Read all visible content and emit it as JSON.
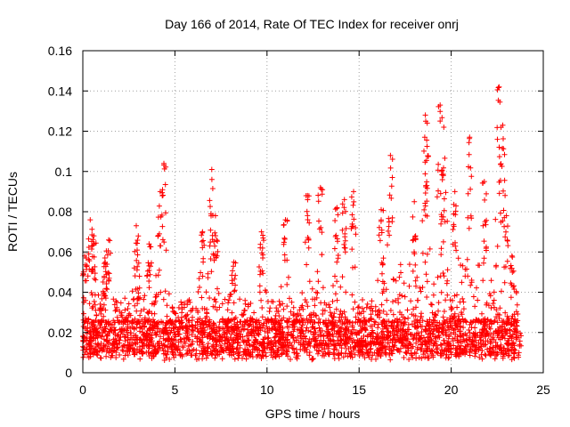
{
  "chart_data": {
    "type": "scatter",
    "title": "Day 166 of 2014, Rate Of TEC Index for receiver onrj",
    "xlabel": "GPS time / hours",
    "ylabel": "ROTI / TECUs",
    "xlim": [
      0,
      25
    ],
    "ylim": [
      0,
      0.16
    ],
    "xticks": [
      0,
      5,
      10,
      15,
      20,
      25
    ],
    "xtick_labels": [
      "0",
      "5",
      "10",
      "15",
      "20",
      "25"
    ],
    "yticks": [
      0,
      0.02,
      0.04,
      0.06,
      0.08,
      0.1,
      0.12,
      0.14,
      0.16
    ],
    "ytick_labels": [
      "0",
      "0.02",
      "0.04",
      "0.06",
      "0.08",
      "0.1",
      "0.12",
      "0.14",
      "0.16"
    ],
    "grid": true,
    "marker": "plus",
    "series": [
      {
        "name": "ROTI",
        "color": "#ff0000",
        "x_range": [
          0,
          23.8
        ],
        "baseline_band": [
          0.008,
          0.025
        ],
        "peaks": [
          {
            "x": 0.1,
            "y": 0.058
          },
          {
            "x": 0.4,
            "y": 0.076
          },
          {
            "x": 0.6,
            "y": 0.068
          },
          {
            "x": 1.2,
            "y": 0.057
          },
          {
            "x": 1.4,
            "y": 0.066
          },
          {
            "x": 2.9,
            "y": 0.073
          },
          {
            "x": 3.6,
            "y": 0.064
          },
          {
            "x": 4.2,
            "y": 0.09
          },
          {
            "x": 4.4,
            "y": 0.104
          },
          {
            "x": 6.5,
            "y": 0.07
          },
          {
            "x": 7.0,
            "y": 0.101
          },
          {
            "x": 7.2,
            "y": 0.078
          },
          {
            "x": 8.2,
            "y": 0.055
          },
          {
            "x": 9.7,
            "y": 0.07
          },
          {
            "x": 11.0,
            "y": 0.076
          },
          {
            "x": 12.2,
            "y": 0.088
          },
          {
            "x": 12.9,
            "y": 0.092
          },
          {
            "x": 13.8,
            "y": 0.082
          },
          {
            "x": 14.2,
            "y": 0.086
          },
          {
            "x": 14.7,
            "y": 0.09
          },
          {
            "x": 16.2,
            "y": 0.081
          },
          {
            "x": 16.7,
            "y": 0.108
          },
          {
            "x": 18.0,
            "y": 0.085
          },
          {
            "x": 18.6,
            "y": 0.128
          },
          {
            "x": 18.7,
            "y": 0.124
          },
          {
            "x": 19.4,
            "y": 0.133
          },
          {
            "x": 19.6,
            "y": 0.122
          },
          {
            "x": 20.2,
            "y": 0.09
          },
          {
            "x": 21.0,
            "y": 0.117
          },
          {
            "x": 21.8,
            "y": 0.095
          },
          {
            "x": 22.6,
            "y": 0.142
          },
          {
            "x": 22.8,
            "y": 0.123
          },
          {
            "x": 23.0,
            "y": 0.078
          },
          {
            "x": 23.3,
            "y": 0.058
          }
        ]
      }
    ]
  }
}
